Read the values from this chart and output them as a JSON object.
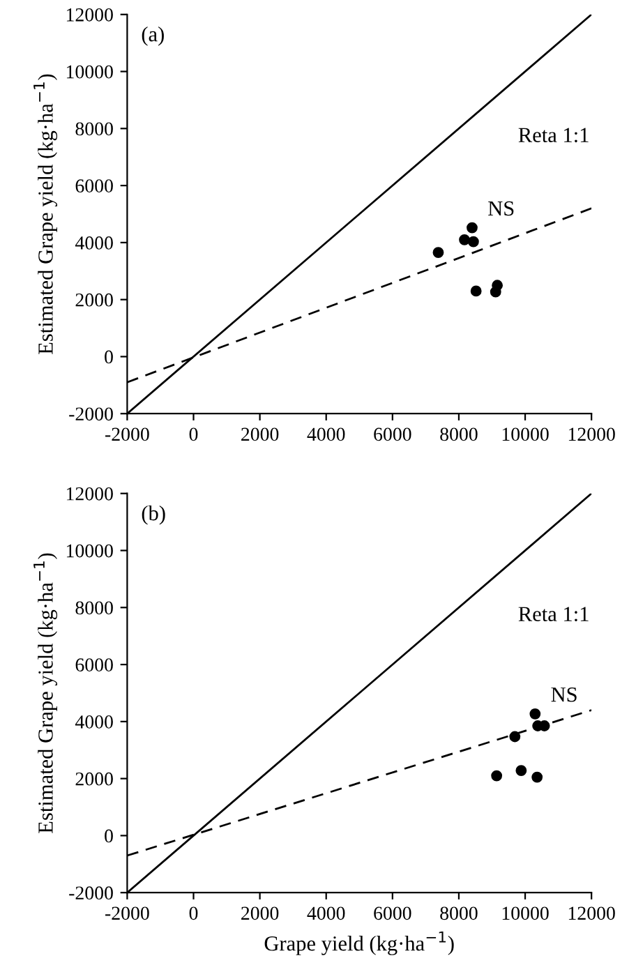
{
  "chart_data": [
    {
      "type": "scatter",
      "ylabel": "Estimated Grape yield (kg·ha$^{−1}$)",
      "marker": "circle",
      "grid": false,
      "annotations": [
        "(a)"
      ],
      "xlim": [
        -2000,
        12000
      ],
      "ylim": [
        -2000,
        12000
      ],
      "xticks": [
        -2000,
        0,
        2000,
        4000,
        6000,
        8000,
        10000,
        12000
      ],
      "yticks": [
        -2000,
        0,
        2000,
        4000,
        6000,
        8000,
        10000,
        12000
      ],
      "series": [
        {
          "name": "NS",
          "color": "#000000",
          "x": [
            8400,
            8170,
            8440,
            7380,
            8520,
            9160,
            9110
          ],
          "values": [
            4520,
            4100,
            4030,
            3650,
            2300,
            2500,
            2270
          ]
        },
        {
          "type": "line",
          "name": "Reta 1:1",
          "color": "#000000",
          "line_style": "solid",
          "marker": "none",
          "x": [
            -2000,
            12000
          ],
          "values": [
            -2000,
            12000
          ]
        },
        {
          "type": "line",
          "color": "#000000",
          "line_style": "dashed",
          "marker": "none",
          "x": [
            -2000,
            12000
          ],
          "values": [
            -900,
            5200
          ]
        }
      ]
    },
    {
      "type": "scatter",
      "xlabel": "Grape yield (kg·ha$^{−1}$)",
      "ylabel": "Estimated Grape yield (kg·ha$^{−1}$)",
      "marker": "circle",
      "grid": false,
      "annotations": [
        "(b)"
      ],
      "xlim": [
        -2000,
        12000
      ],
      "ylim": [
        -2000,
        12000
      ],
      "xticks": [
        -2000,
        0,
        2000,
        4000,
        6000,
        8000,
        10000,
        12000
      ],
      "yticks": [
        -2000,
        0,
        2000,
        4000,
        6000,
        8000,
        10000,
        12000
      ],
      "series": [
        {
          "name": "NS",
          "color": "#000000",
          "x": [
            10300,
            10380,
            10580,
            9690,
            9140,
            9880,
            10360
          ],
          "values": [
            4270,
            3850,
            3850,
            3470,
            2100,
            2280,
            2050
          ]
        },
        {
          "type": "line",
          "name": "Reta 1:1",
          "color": "#000000",
          "line_style": "solid",
          "marker": "none",
          "x": [
            -2000,
            12000
          ],
          "values": [
            -2000,
            12000
          ]
        },
        {
          "type": "line",
          "color": "#000000",
          "line_style": "dashed",
          "marker": "none",
          "x": [
            -2000,
            12000
          ],
          "values": [
            -700,
            4400
          ]
        }
      ]
    }
  ]
}
